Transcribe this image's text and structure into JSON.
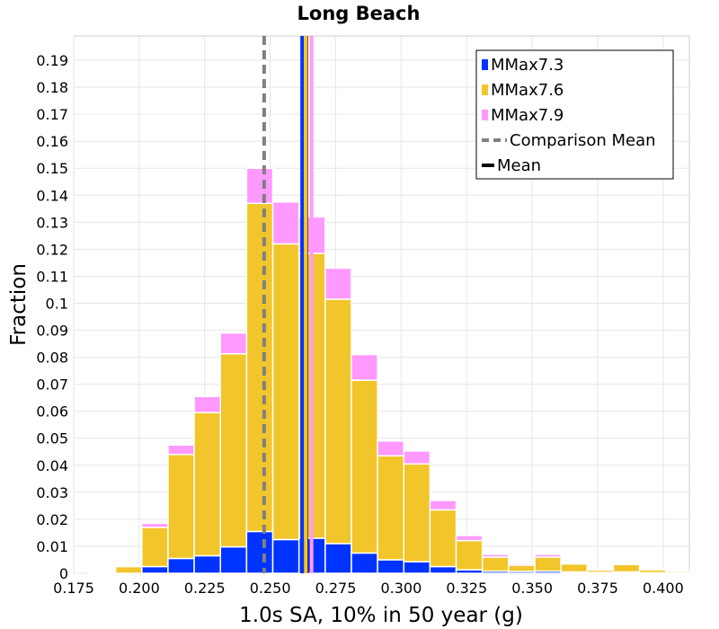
{
  "chart_data": {
    "type": "bar",
    "title": "Long Beach",
    "xlabel": "1.0s SA, 10% in 50 year (g)",
    "ylabel": "Fraction",
    "xlim": [
      0.175,
      0.41
    ],
    "ylim": [
      0,
      0.199
    ],
    "grid": true,
    "legend_position": "top-right",
    "stacked": true,
    "bin_width": 0.01,
    "x_ticks": [
      "0.175",
      "0.200",
      "0.225",
      "0.250",
      "0.275",
      "0.300",
      "0.325",
      "0.350",
      "0.375",
      "0.400"
    ],
    "y_ticks": [
      "0",
      "0.01",
      "0.02",
      "0.03",
      "0.04",
      "0.05",
      "0.06",
      "0.07",
      "0.08",
      "0.09",
      "0.1",
      "0.11",
      "0.12",
      "0.13",
      "0.14",
      "0.15",
      "0.16",
      "0.17",
      "0.18",
      "0.19"
    ],
    "bin_centers": [
      0.186,
      0.196,
      0.206,
      0.216,
      0.226,
      0.236,
      0.246,
      0.256,
      0.266,
      0.276,
      0.286,
      0.296,
      0.306,
      0.316,
      0.326,
      0.336,
      0.346,
      0.356,
      0.366,
      0.376,
      0.386,
      0.396,
      0.406
    ],
    "series": [
      {
        "name": "MMax7.3",
        "color": "#0033ff",
        "values": [
          0,
          0,
          0.0025,
          0.0055,
          0.0065,
          0.0098,
          0.0155,
          0.0125,
          0.013,
          0.011,
          0.0075,
          0.005,
          0.0043,
          0.0025,
          0.0013,
          0.0008,
          0.0007,
          0.0008,
          0.0005,
          0.0003,
          0.0005,
          0.0002,
          0.0001
        ]
      },
      {
        "name": "MMax7.6",
        "color": "#f2c52a",
        "values": [
          0.0003,
          0.0025,
          0.0145,
          0.0385,
          0.053,
          0.0715,
          0.1215,
          0.1095,
          0.1055,
          0.0905,
          0.064,
          0.0385,
          0.0362,
          0.021,
          0.0108,
          0.0052,
          0.0023,
          0.0052,
          0.003,
          0.0009,
          0.0028,
          0.0011,
          0.0006
        ]
      },
      {
        "name": "MMax7.9",
        "color": "#ff99ff",
        "values": [
          0.0002,
          0.0003,
          0.0015,
          0.0035,
          0.006,
          0.0077,
          0.013,
          0.0155,
          0.0135,
          0.0115,
          0.0095,
          0.0055,
          0.0048,
          0.0035,
          0.0019,
          0.001,
          0.0006,
          0.001,
          0.0004,
          0.0003,
          0.0005,
          0.0002,
          0.0003
        ]
      }
    ],
    "lines": [
      {
        "name": "Comparison Mean",
        "x": 0.2477,
        "color": "#808080",
        "style": "dashed"
      },
      {
        "name": "Mean",
        "x": 0.2638,
        "color": "#000000",
        "style": "solid"
      },
      {
        "name": "MMax7.3 mean",
        "x": 0.2622,
        "color": "#0033ff",
        "style": "solid"
      },
      {
        "name": "MMax7.6 mean",
        "x": 0.2636,
        "color": "#f2c52a",
        "style": "solid"
      },
      {
        "name": "MMax7.9 mean",
        "x": 0.2658,
        "color": "#ff99ff",
        "style": "solid"
      }
    ],
    "legend": [
      {
        "label": "MMax7.3",
        "kind": "box",
        "color": "#0033ff"
      },
      {
        "label": "MMax7.6",
        "kind": "box",
        "color": "#f2c52a"
      },
      {
        "label": "MMax7.9",
        "kind": "box",
        "color": "#ff99ff"
      },
      {
        "label": "Comparison Mean",
        "kind": "dashed",
        "color": "#808080"
      },
      {
        "label": "Mean",
        "kind": "line",
        "color": "#000000"
      }
    ]
  }
}
